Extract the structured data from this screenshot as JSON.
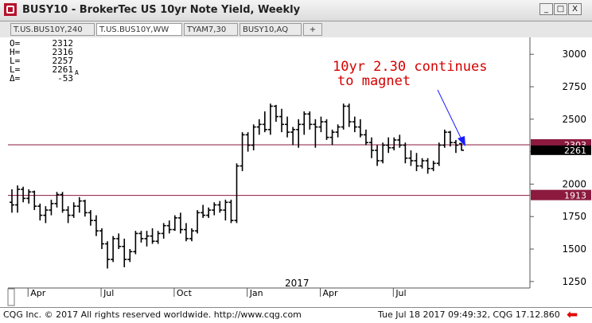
{
  "window": {
    "title": "BUSY10 - BrokerTec US 10yr Note Yield, Weekly",
    "min_label": "_",
    "max_label": "□",
    "close_label": "X"
  },
  "tabs": [
    {
      "label": "T.US.BUS10Y,240",
      "active": false
    },
    {
      "label": "T.US.BUS10Y,WW",
      "active": true
    },
    {
      "label": "TYAM7,30",
      "active": false
    },
    {
      "label": "BUSY10,AQ",
      "active": false
    },
    {
      "label": "+",
      "active": false
    }
  ],
  "readout": {
    "o_label": "O=",
    "o_value": "2312",
    "h_label": "H=",
    "h_value": "2316",
    "l_label": "L=",
    "l_value": "2257",
    "c_label": "L=",
    "c_value": "2261",
    "c_flag": "A",
    "d_label": "Δ=",
    "d_value": "-53"
  },
  "annotation": {
    "line1": "10yr 2.30 continues",
    "line2": "to magnet",
    "color": "#d40000"
  },
  "chart_data": {
    "type": "ohlc",
    "title": "",
    "y_ticks": [
      "3000",
      "2750",
      "2500",
      "2250",
      "2000",
      "1750",
      "1500",
      "1250"
    ],
    "y_tick_values": [
      3000,
      2750,
      2500,
      2250,
      2000,
      1750,
      1500,
      1250
    ],
    "ylim": [
      1200,
      3130
    ],
    "x_ticks": [
      "Apr",
      "Jul",
      "Oct",
      "Jan",
      "Apr",
      "Jul"
    ],
    "year_label": "2017",
    "horizontal_levels": [
      {
        "value": 2303,
        "label": "2303",
        "color": "#8b1a3e"
      },
      {
        "value": 1913,
        "label": "1913",
        "color": "#8b1a3e"
      }
    ],
    "last_price": {
      "value": 2261,
      "label": "2261"
    },
    "bars": [
      [
        1860,
        1960,
        1780,
        1840
      ],
      [
        1840,
        1990,
        1780,
        1960
      ],
      [
        1960,
        1980,
        1860,
        1890
      ],
      [
        1890,
        1960,
        1850,
        1940
      ],
      [
        1940,
        1950,
        1800,
        1830
      ],
      [
        1830,
        1850,
        1720,
        1760
      ],
      [
        1760,
        1830,
        1700,
        1800
      ],
      [
        1800,
        1880,
        1760,
        1850
      ],
      [
        1850,
        1940,
        1820,
        1920
      ],
      [
        1920,
        1940,
        1780,
        1800
      ],
      [
        1800,
        1830,
        1700,
        1760
      ],
      [
        1760,
        1860,
        1740,
        1830
      ],
      [
        1830,
        1900,
        1780,
        1870
      ],
      [
        1870,
        1880,
        1750,
        1780
      ],
      [
        1780,
        1800,
        1680,
        1720
      ],
      [
        1720,
        1760,
        1600,
        1640
      ],
      [
        1640,
        1660,
        1500,
        1540
      ],
      [
        1540,
        1560,
        1350,
        1420
      ],
      [
        1420,
        1600,
        1400,
        1580
      ],
      [
        1580,
        1620,
        1500,
        1520
      ],
      [
        1520,
        1580,
        1360,
        1420
      ],
      [
        1420,
        1500,
        1400,
        1480
      ],
      [
        1480,
        1640,
        1460,
        1620
      ],
      [
        1620,
        1640,
        1550,
        1580
      ],
      [
        1580,
        1640,
        1520,
        1600
      ],
      [
        1600,
        1660,
        1540,
        1560
      ],
      [
        1560,
        1640,
        1540,
        1620
      ],
      [
        1620,
        1700,
        1580,
        1680
      ],
      [
        1680,
        1720,
        1620,
        1650
      ],
      [
        1650,
        1760,
        1640,
        1740
      ],
      [
        1740,
        1780,
        1620,
        1650
      ],
      [
        1650,
        1700,
        1560,
        1580
      ],
      [
        1580,
        1660,
        1560,
        1640
      ],
      [
        1640,
        1800,
        1620,
        1780
      ],
      [
        1780,
        1840,
        1740,
        1760
      ],
      [
        1760,
        1820,
        1740,
        1800
      ],
      [
        1800,
        1860,
        1760,
        1840
      ],
      [
        1840,
        1870,
        1780,
        1800
      ],
      [
        1800,
        1880,
        1720,
        1860
      ],
      [
        1860,
        1880,
        1700,
        1720
      ],
      [
        1720,
        2160,
        1700,
        2140
      ],
      [
        2140,
        2400,
        2100,
        2380
      ],
      [
        2380,
        2400,
        2250,
        2300
      ],
      [
        2300,
        2460,
        2260,
        2440
      ],
      [
        2440,
        2500,
        2380,
        2460
      ],
      [
        2460,
        2560,
        2400,
        2420
      ],
      [
        2420,
        2620,
        2380,
        2600
      ],
      [
        2600,
        2610,
        2480,
        2520
      ],
      [
        2520,
        2580,
        2400,
        2460
      ],
      [
        2460,
        2520,
        2360,
        2400
      ],
      [
        2400,
        2440,
        2300,
        2420
      ],
      [
        2420,
        2500,
        2280,
        2460
      ],
      [
        2460,
        2560,
        2380,
        2540
      ],
      [
        2540,
        2560,
        2420,
        2460
      ],
      [
        2460,
        2500,
        2280,
        2440
      ],
      [
        2440,
        2520,
        2400,
        2480
      ],
      [
        2480,
        2500,
        2340,
        2360
      ],
      [
        2360,
        2420,
        2300,
        2400
      ],
      [
        2400,
        2460,
        2360,
        2440
      ],
      [
        2440,
        2620,
        2420,
        2600
      ],
      [
        2600,
        2620,
        2440,
        2480
      ],
      [
        2480,
        2520,
        2400,
        2440
      ],
      [
        2440,
        2500,
        2360,
        2380
      ],
      [
        2380,
        2420,
        2300,
        2320
      ],
      [
        2320,
        2360,
        2200,
        2260
      ],
      [
        2260,
        2300,
        2140,
        2180
      ],
      [
        2180,
        2320,
        2160,
        2300
      ],
      [
        2300,
        2360,
        2240,
        2280
      ],
      [
        2280,
        2360,
        2260,
        2340
      ],
      [
        2340,
        2380,
        2280,
        2300
      ],
      [
        2300,
        2320,
        2160,
        2200
      ],
      [
        2200,
        2260,
        2140,
        2180
      ],
      [
        2180,
        2240,
        2100,
        2140
      ],
      [
        2140,
        2200,
        2120,
        2180
      ],
      [
        2180,
        2200,
        2080,
        2120
      ],
      [
        2120,
        2180,
        2100,
        2160
      ],
      [
        2160,
        2320,
        2140,
        2300
      ],
      [
        2300,
        2420,
        2280,
        2400
      ],
      [
        2400,
        2410,
        2290,
        2320
      ],
      [
        2320,
        2340,
        2240,
        2300
      ],
      [
        2312,
        2316,
        2257,
        2261
      ]
    ]
  },
  "footer": {
    "copyright": "CQG Inc. © 2017 All rights reserved worldwide.  http://www.cqg.com",
    "timestamp": "Tue Jul 18 2017 09:49:32, CQG 17.12.860"
  }
}
